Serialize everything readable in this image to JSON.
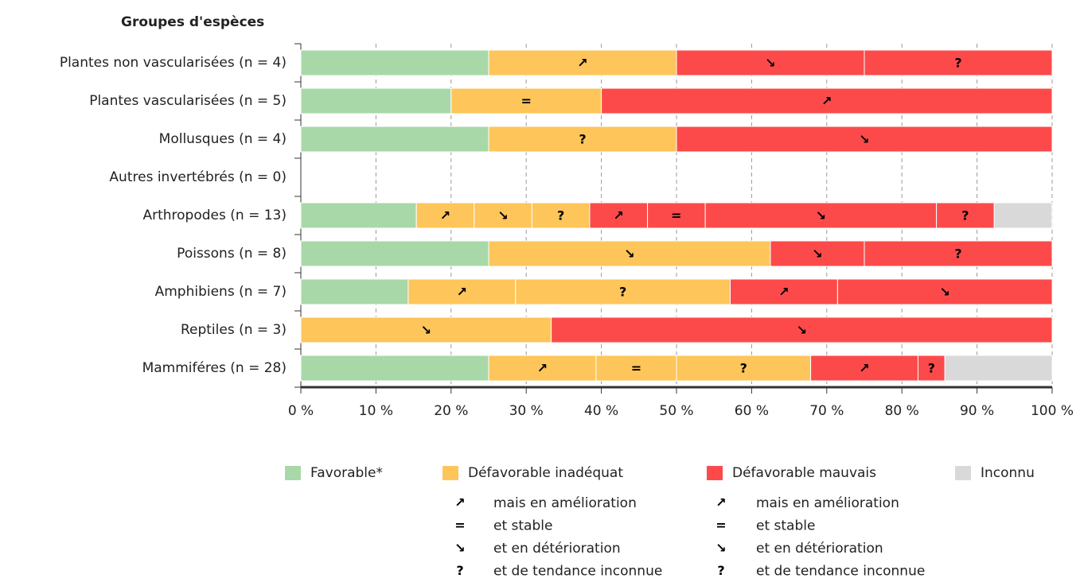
{
  "chart_data": {
    "type": "stacked-barh",
    "title": "Groupes d'espèces",
    "categories": [
      "Plantes non vascularisées (n = 4)",
      "Plantes vascularisées (n = 5)",
      "Mollusques (n = 4)",
      "Autres invertébrés (n = 0)",
      "Arthropodes (n = 13)",
      "Poissons (n = 8)",
      "Amphibiens (n = 7)",
      "Reptiles (n = 3)",
      "Mammiféres (n = 28)"
    ],
    "series": [
      {
        "name": "Favorable*",
        "color": "#a8d8a8",
        "values": [
          25,
          20,
          25,
          0,
          15.38,
          25,
          14.29,
          0,
          25
        ]
      },
      {
        "name": "Défavorable inadéquat",
        "trend": "↗",
        "color": "#fdc55a",
        "values": [
          25,
          0,
          0,
          0,
          7.69,
          0,
          14.29,
          0,
          14.29
        ]
      },
      {
        "name": "Défavorable inadéquat",
        "trend": "=",
        "color": "#fdc55a",
        "values": [
          0,
          20,
          0,
          0,
          0,
          0,
          0,
          0,
          10.71
        ]
      },
      {
        "name": "Défavorable inadéquat",
        "trend": "↘",
        "color": "#fdc55a",
        "values": [
          0,
          0,
          0,
          0,
          7.69,
          37.5,
          0,
          33.33,
          0
        ]
      },
      {
        "name": "Défavorable inadéquat",
        "trend": "?",
        "color": "#fdc55a",
        "values": [
          0,
          0,
          25,
          0,
          7.69,
          0,
          28.57,
          0,
          17.86
        ]
      },
      {
        "name": "Défavorable mauvais",
        "trend": "↗",
        "color": "#fc4a4a",
        "values": [
          0,
          60,
          0,
          0,
          7.69,
          0,
          14.29,
          0,
          14.29
        ]
      },
      {
        "name": "Défavorable mauvais",
        "trend": "=",
        "color": "#fc4a4a",
        "values": [
          0,
          0,
          0,
          0,
          7.69,
          0,
          0,
          0,
          0
        ]
      },
      {
        "name": "Défavorable mauvais",
        "trend": "↘",
        "color": "#fc4a4a",
        "values": [
          25,
          0,
          50,
          0,
          30.77,
          12.5,
          28.57,
          66.67,
          0
        ]
      },
      {
        "name": "Défavorable mauvais",
        "trend": "?",
        "color": "#fc4a4a",
        "values": [
          25,
          0,
          0,
          0,
          7.69,
          25,
          0,
          0,
          3.57
        ]
      },
      {
        "name": "Inconnu",
        "color": "#d9d9d9",
        "values": [
          0,
          0,
          0,
          0,
          7.69,
          0,
          0,
          0,
          14.29
        ]
      }
    ],
    "trend_legend": [
      {
        "symbol": "↗",
        "label": "mais en amélioration"
      },
      {
        "symbol": "=",
        "label": "et stable"
      },
      {
        "symbol": "↘",
        "label": "et en détérioration"
      },
      {
        "symbol": "?",
        "label": "et de tendance inconnue"
      }
    ],
    "xlim": [
      0,
      100
    ],
    "xticks": [
      {
        "value": 0,
        "label": "0 %"
      },
      {
        "value": 10,
        "label": "10 %"
      },
      {
        "value": 20,
        "label": "20 %"
      },
      {
        "value": 30,
        "label": "30 %"
      },
      {
        "value": 40,
        "label": "40 %"
      },
      {
        "value": 50,
        "label": "50 %"
      },
      {
        "value": 60,
        "label": "60 %"
      },
      {
        "value": 70,
        "label": "70 %"
      },
      {
        "value": 80,
        "label": "80 %"
      },
      {
        "value": 90,
        "label": "90 %"
      },
      {
        "value": 100,
        "label": "100 %"
      }
    ],
    "grid": true
  }
}
